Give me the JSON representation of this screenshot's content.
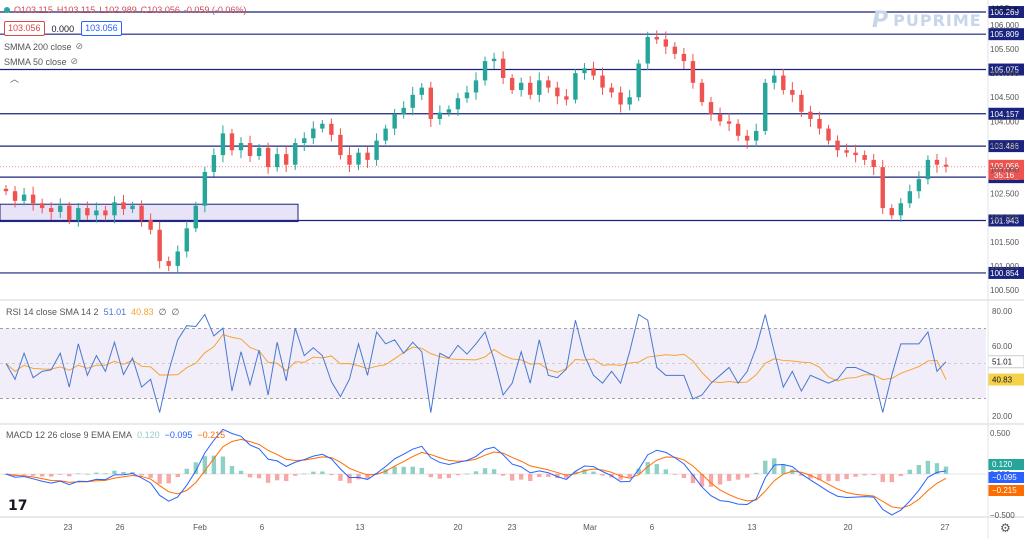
{
  "ohlc_bar": {
    "open": "O103.115",
    "high": "H103.115",
    "low": "L102.989",
    "close": "C103.056",
    "change": "-0.059 (-0.06%)"
  },
  "quote": {
    "sell": "103.056",
    "spread": "0.000",
    "buy": "103.056"
  },
  "indicators": {
    "sma200": "SMMA 200 close",
    "sma50": "SMMA 50 close"
  },
  "currency": "USD",
  "logo_text": "PUPRIME",
  "tv_logo": "17",
  "price_axis": {
    "ticks": [
      "106.000",
      "105.500",
      "105.000",
      "104.500",
      "104.000",
      "103.500",
      "103.000",
      "102.500",
      "102.000",
      "101.500",
      "101.000",
      "100.500"
    ],
    "levels": [
      {
        "label": "106.269",
        "value": 106.269
      },
      {
        "label": "105.809",
        "value": 105.809
      },
      {
        "label": "105.075",
        "value": 105.075
      },
      {
        "label": "104.157",
        "value": 104.157
      },
      {
        "label": "103.486",
        "value": 103.486
      },
      {
        "label": "102.842",
        "value": 102.842
      },
      {
        "label": "101.943",
        "value": 101.943
      },
      {
        "label": "100.854",
        "value": 100.854
      }
    ],
    "current_price": "103.056",
    "countdown": "35:16"
  },
  "rsi": {
    "title": "RSI 14 close SMA 14 2",
    "rsi_value": "51.01",
    "sma_value": "40.83",
    "extra1": "∅",
    "extra2": "∅",
    "ticks": [
      "80.00",
      "60.00",
      "40.00",
      "20.00"
    ],
    "last": 51.01,
    "sma_last": 40.83
  },
  "macd": {
    "title": "MACD 12 26 close 9 EMA EMA",
    "hist": "0.120",
    "macd": "−0.095",
    "signal": "−0.215",
    "ticks": [
      "0.500",
      "0.000",
      "−0.500"
    ]
  },
  "time_axis": [
    "23",
    "26",
    "Feb",
    "6",
    "13",
    "20",
    "23",
    "Mar",
    "6",
    "13",
    "20",
    "27"
  ],
  "colors": {
    "up": "#26a69a",
    "down": "#ef5350",
    "level_line": "#1a237e",
    "rsi_line": "#4a78d0",
    "rsi_sma": "#f6a331",
    "macd_line": "#2962ff",
    "signal_line": "#ff6d00",
    "range_box": "#d8d0f0"
  },
  "chart_data": {
    "type": "candlestick",
    "series": [
      {
        "name": "price",
        "values": [
          102.55,
          102.35,
          102.48,
          102.3,
          102.2,
          102.12,
          102.25,
          101.95,
          102.2,
          102.05,
          102.15,
          102.05,
          102.32,
          102.18,
          102.25,
          101.95,
          101.75,
          101.1,
          101.0,
          101.3,
          101.78,
          102.25,
          102.95,
          103.3,
          103.75,
          103.4,
          103.55,
          103.28,
          103.45,
          103.05,
          103.32,
          103.1,
          103.55,
          103.65,
          103.85,
          103.95,
          103.72,
          103.3,
          103.1,
          103.35,
          103.2,
          103.6,
          103.85,
          104.15,
          104.28,
          104.55,
          104.7,
          104.05,
          104.18,
          104.25,
          104.48,
          104.6,
          104.85,
          105.25,
          105.3,
          104.9,
          104.65,
          104.8,
          104.55,
          104.85,
          104.7,
          104.52,
          104.45,
          105.0,
          105.1,
          104.95,
          104.7,
          104.6,
          104.35,
          104.5,
          105.2,
          105.75,
          105.7,
          105.55,
          105.4,
          105.25,
          104.8,
          104.4,
          104.15,
          104.0,
          103.95,
          103.7,
          103.6,
          103.8,
          104.8,
          104.95,
          104.65,
          104.55,
          104.2,
          104.05,
          103.85,
          103.6,
          103.4,
          103.35,
          103.3,
          103.2,
          103.05,
          102.2,
          102.05,
          102.3,
          102.55,
          102.8,
          103.2,
          103.1,
          103.06
        ]
      }
    ]
  }
}
